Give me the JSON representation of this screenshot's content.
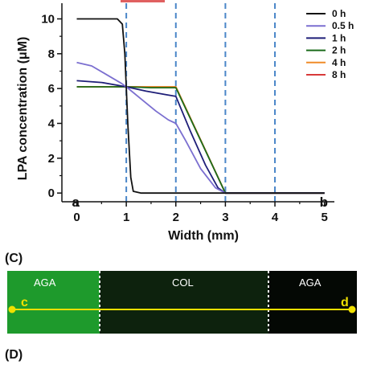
{
  "chart_data": {
    "type": "line",
    "xlabel": "Width (mm)",
    "ylabel": "LPA concentration (μM)",
    "xlim": [
      -0.3,
      5.2
    ],
    "ylim": [
      -0.5,
      10.9
    ],
    "xticks": [
      "0",
      "1",
      "2",
      "3",
      "4",
      "5"
    ],
    "yticks": [
      "0",
      "2",
      "4",
      "6",
      "8",
      "10"
    ],
    "dashed_verticals": [
      1,
      2,
      3,
      4
    ],
    "corner_labels": [
      {
        "text": "a",
        "x": 0,
        "y": 0
      },
      {
        "text": "b",
        "x": 5,
        "y": 0
      }
    ],
    "legend_position": "top-right",
    "series": [
      {
        "name": "0 h",
        "color": "#111111",
        "points": [
          [
            0,
            10
          ],
          [
            0.82,
            10
          ],
          [
            0.92,
            9.7
          ],
          [
            0.97,
            8
          ],
          [
            1.03,
            4
          ],
          [
            1.09,
            0.9
          ],
          [
            1.14,
            0.1
          ],
          [
            1.3,
            0
          ],
          [
            5,
            0
          ]
        ]
      },
      {
        "name": "0.5 h",
        "color": "#7b6fd0",
        "points": [
          [
            0,
            7.5
          ],
          [
            0.3,
            7.3
          ],
          [
            0.6,
            6.8
          ],
          [
            0.9,
            6.3
          ],
          [
            1.0,
            6.1
          ],
          [
            1.3,
            5.4
          ],
          [
            1.6,
            4.7
          ],
          [
            1.85,
            4.2
          ],
          [
            2.0,
            4.0
          ],
          [
            2.2,
            3.0
          ],
          [
            2.5,
            1.4
          ],
          [
            2.8,
            0.3
          ],
          [
            3.0,
            0
          ],
          [
            5,
            0
          ]
        ]
      },
      {
        "name": "1 h",
        "color": "#1e1e78",
        "points": [
          [
            0,
            6.45
          ],
          [
            0.5,
            6.35
          ],
          [
            1.0,
            6.1
          ],
          [
            1.4,
            5.85
          ],
          [
            1.8,
            5.65
          ],
          [
            2.0,
            5.55
          ],
          [
            2.3,
            3.5
          ],
          [
            2.6,
            1.6
          ],
          [
            2.85,
            0.3
          ],
          [
            3.0,
            0
          ],
          [
            5,
            0
          ]
        ]
      },
      {
        "name": "2 h",
        "color": "#1a6b1a",
        "points": [
          [
            0,
            6.1
          ],
          [
            1.0,
            6.1
          ],
          [
            1.5,
            6.05
          ],
          [
            2.0,
            6.05
          ],
          [
            3.0,
            0
          ],
          [
            5,
            0
          ]
        ]
      },
      {
        "name": "4 h",
        "color": "#f08c28",
        "points": [
          [
            0,
            6.1
          ],
          [
            2.0,
            6.1
          ],
          [
            3.0,
            0
          ],
          [
            5,
            0
          ]
        ]
      },
      {
        "name": "8 h",
        "color": "#d83a3a",
        "points": [
          [
            0,
            6.1
          ],
          [
            2.0,
            6.1
          ],
          [
            3.0,
            0
          ],
          [
            5,
            0
          ]
        ]
      }
    ]
  },
  "panel_c": {
    "label": "(C)",
    "zones": [
      "AGA",
      "COL",
      "AGA"
    ],
    "left_marker": "c",
    "right_marker": "d",
    "colors": {
      "left": "#1e9a2c",
      "middle": "#0d220d",
      "right": "#040804",
      "line": "#f0e000"
    }
  },
  "panel_d": {
    "label": "(D)"
  }
}
